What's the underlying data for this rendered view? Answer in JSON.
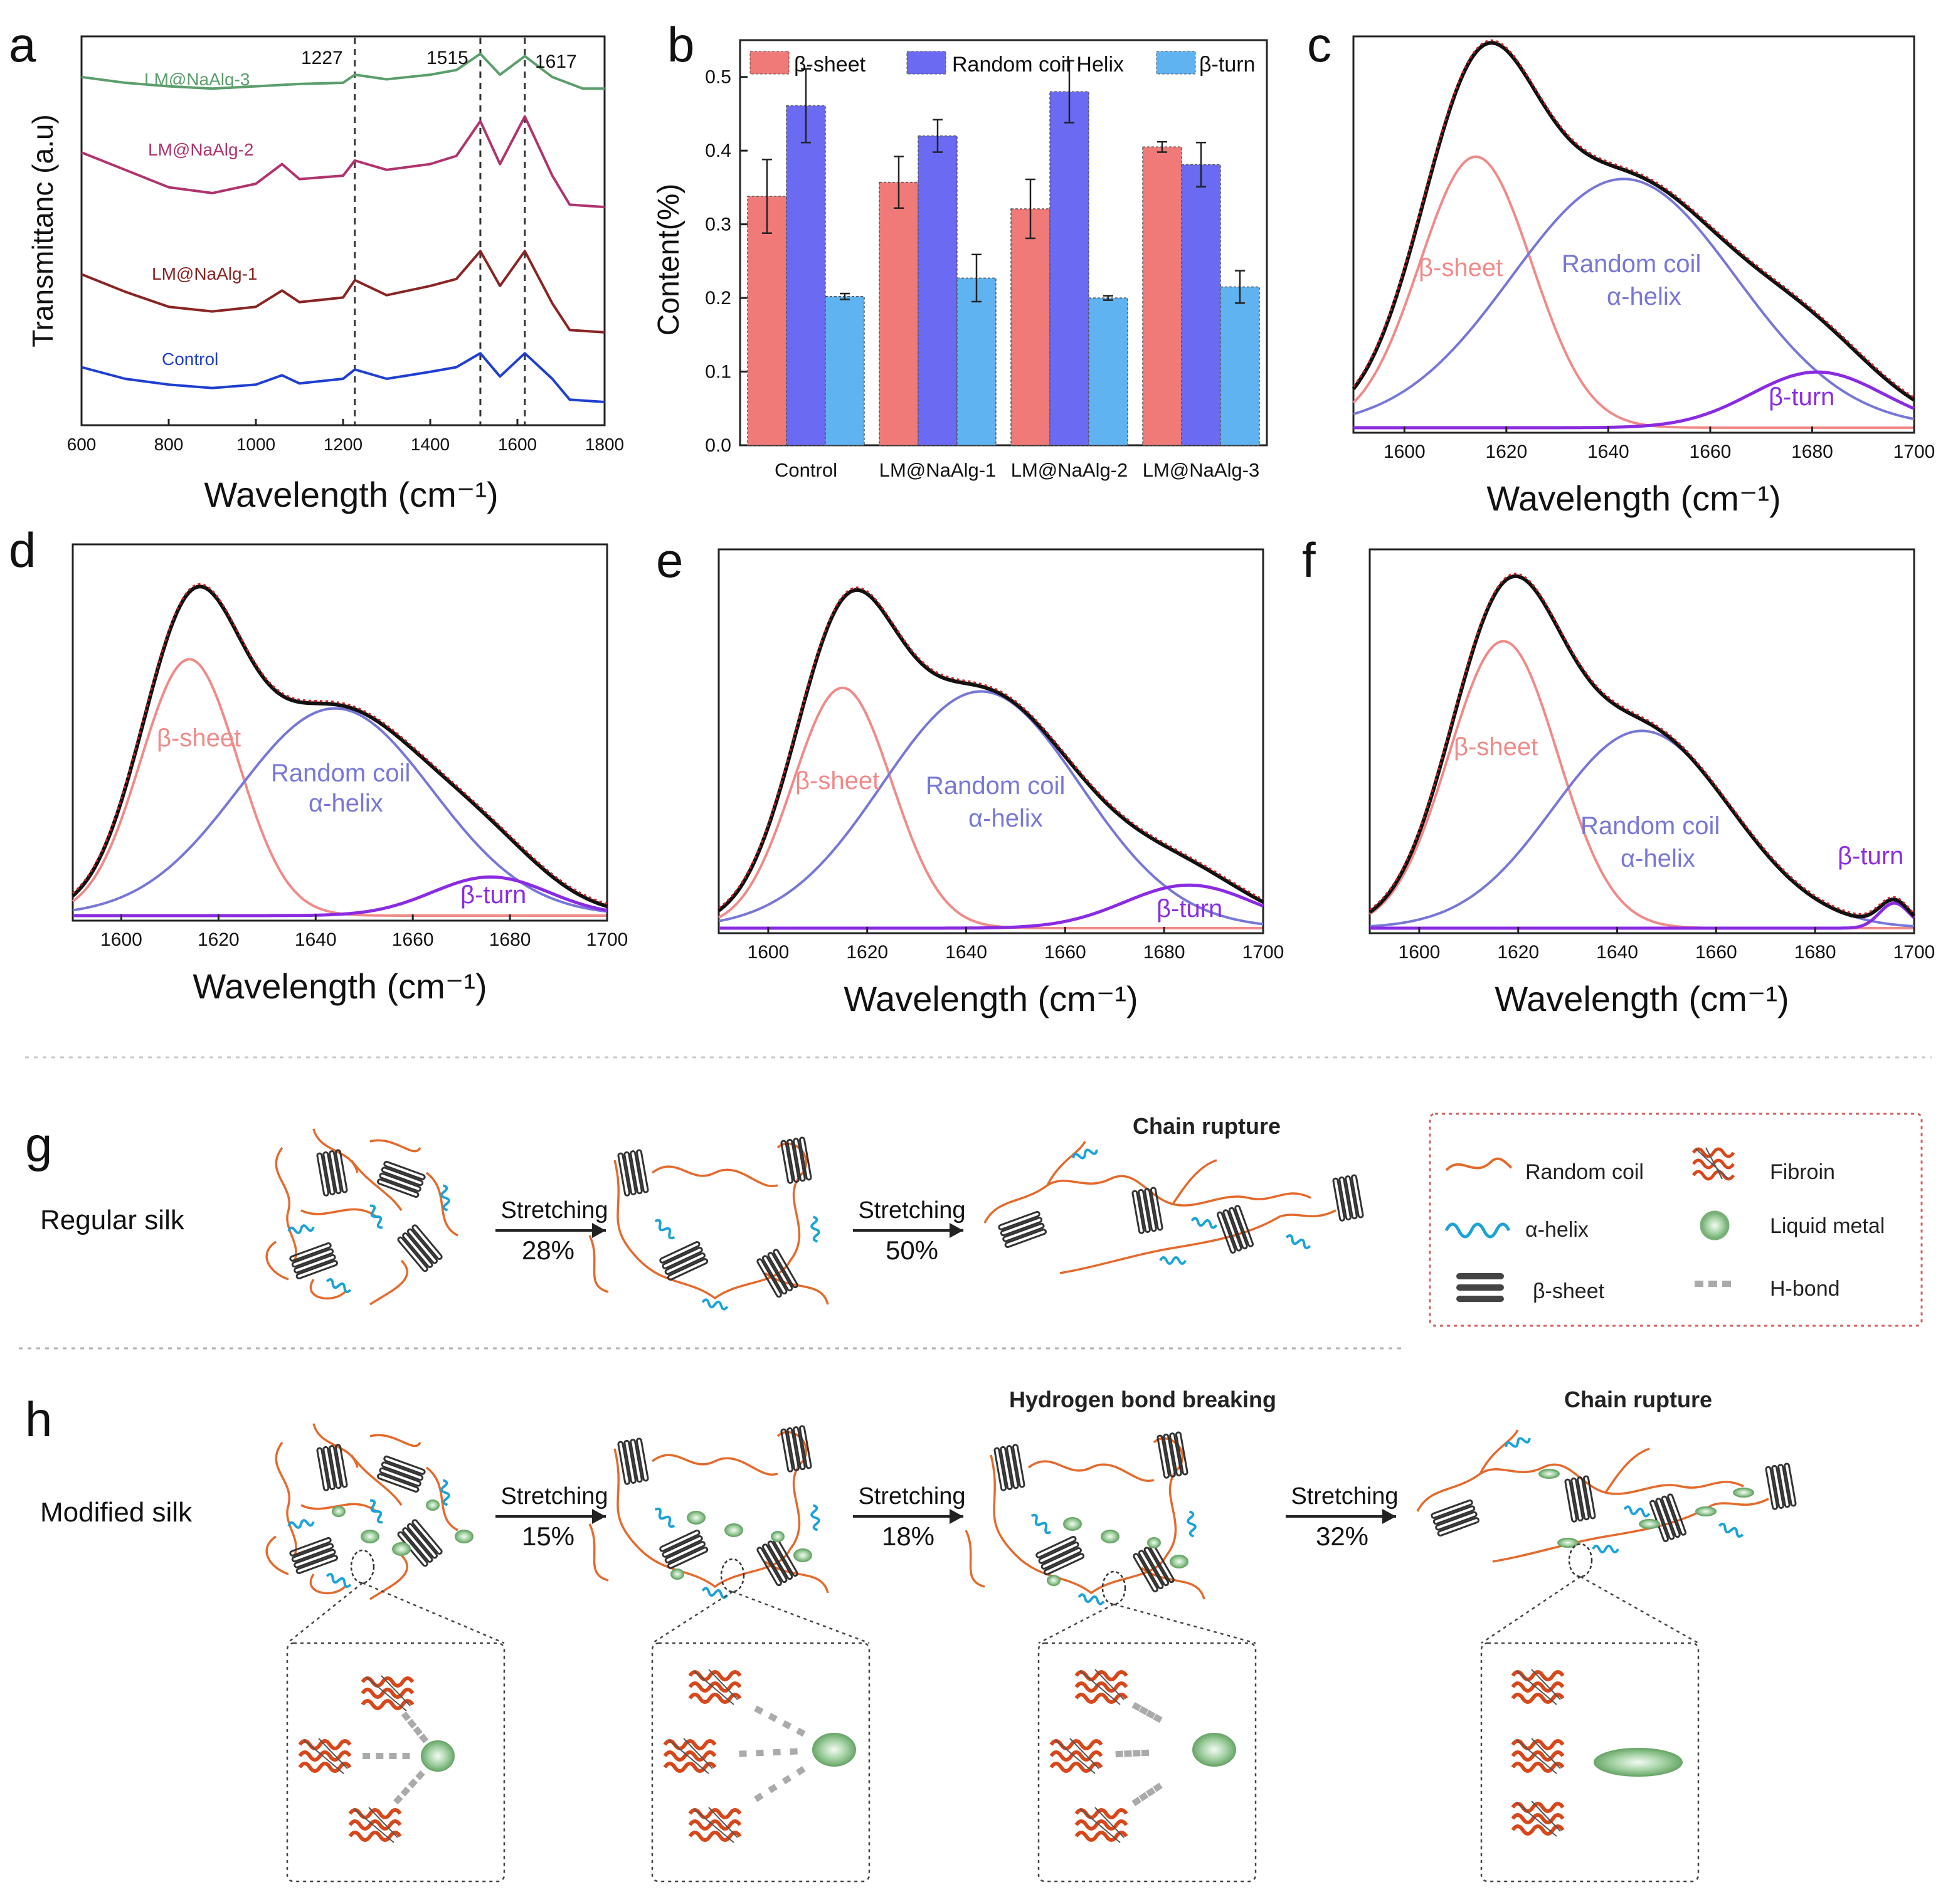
{
  "panels": {
    "a": {
      "letter": "a",
      "xlabel": "Wavelength (cm⁻¹)",
      "ylabel": "Transmittanc (a.u)",
      "xticks": [
        "600",
        "800",
        "1000",
        "1200",
        "1400",
        "1600",
        "1800"
      ],
      "peaks": [
        "1227",
        "1515",
        "1617"
      ],
      "series": [
        {
          "name": "LM@NaAlg-3",
          "color": "#5b9e6c"
        },
        {
          "name": "LM@NaAlg-2",
          "color": "#b0336e"
        },
        {
          "name": "LM@NaAlg-1",
          "color": "#8a2424"
        },
        {
          "name": "Control",
          "color": "#1f3fd1"
        }
      ]
    },
    "b": {
      "letter": "b",
      "ylabel": "Content(%)",
      "yticks": [
        "0.0",
        "0.1",
        "0.2",
        "0.3",
        "0.4",
        "0.5"
      ],
      "legend": [
        "β-sheet",
        "Random coil Helix",
        "β-turn"
      ],
      "colors": [
        "#f07a78",
        "#6a6af2",
        "#5fb3f0"
      ]
    },
    "c": {
      "letter": "c"
    },
    "d": {
      "letter": "d"
    },
    "e": {
      "letter": "e"
    },
    "f": {
      "letter": "f"
    },
    "deconv_common": {
      "xlabel": "Wavelength (cm⁻¹)",
      "xticks": [
        "1600",
        "1620",
        "1640",
        "1660",
        "1680",
        "1700"
      ],
      "labels": {
        "sheet": "β-sheet",
        "coil_1": "Random coil",
        "coil_2": "α-helix",
        "turn": "β-turn"
      },
      "colors": {
        "sheet": "#f08a88",
        "coil": "#7777d8",
        "turn": "#8a2be2",
        "fit": "#111111",
        "data": "#cc2222"
      }
    },
    "g": {
      "letter": "g",
      "row_label": "Regular silk",
      "title": "Chain rupture",
      "steps": [
        {
          "label": "Stretching",
          "pct": "28%"
        },
        {
          "label": "Stretching",
          "pct": "50%"
        }
      ]
    },
    "h": {
      "letter": "h",
      "row_label": "Modified silk",
      "titles": [
        "Hydrogen bond breaking",
        "Chain rupture"
      ],
      "steps": [
        {
          "label": "Stretching",
          "pct": "15%"
        },
        {
          "label": "Stretching",
          "pct": "18%"
        },
        {
          "label": "Stretching",
          "pct": "32%"
        }
      ]
    },
    "legend": {
      "items": [
        "Random coil",
        "α-helix",
        "β-sheet",
        "Fibroin",
        "Liquid metal",
        "H-bond"
      ]
    }
  },
  "chart_data": [
    {
      "panel": "a",
      "type": "line",
      "title": "",
      "xlabel": "Wavelength (cm⁻¹)",
      "ylabel": "Transmittanc (a.u)",
      "xlim": [
        600,
        1800
      ],
      "annotations": [
        1227,
        1515,
        1617
      ],
      "series": [
        {
          "name": "LM@NaAlg-3",
          "x": [
            600,
            700,
            800,
            900,
            1000,
            1100,
            1200,
            1227,
            1300,
            1400,
            1460,
            1515,
            1560,
            1617,
            1680,
            1750,
            1800
          ],
          "y": [
            4.6,
            4.55,
            4.52,
            4.5,
            4.52,
            4.54,
            4.55,
            4.62,
            4.58,
            4.62,
            4.66,
            4.8,
            4.62,
            4.78,
            4.6,
            4.5,
            4.5
          ]
        },
        {
          "name": "LM@NaAlg-2",
          "x": [
            600,
            700,
            800,
            900,
            1000,
            1060,
            1100,
            1200,
            1227,
            1300,
            1400,
            1460,
            1515,
            1560,
            1617,
            1680,
            1720,
            1800
          ],
          "y": [
            3.95,
            3.8,
            3.65,
            3.6,
            3.68,
            3.85,
            3.72,
            3.75,
            3.88,
            3.8,
            3.85,
            3.92,
            4.22,
            3.85,
            4.26,
            3.75,
            3.5,
            3.48
          ]
        },
        {
          "name": "LM@NaAlg-1",
          "x": [
            600,
            700,
            800,
            900,
            1000,
            1060,
            1100,
            1200,
            1227,
            1300,
            1400,
            1460,
            1515,
            1560,
            1617,
            1680,
            1720,
            1800
          ],
          "y": [
            2.9,
            2.75,
            2.62,
            2.58,
            2.62,
            2.76,
            2.66,
            2.7,
            2.85,
            2.72,
            2.8,
            2.86,
            3.1,
            2.8,
            3.1,
            2.65,
            2.42,
            2.4
          ]
        },
        {
          "name": "Control",
          "x": [
            600,
            700,
            800,
            900,
            1000,
            1060,
            1100,
            1200,
            1227,
            1300,
            1400,
            1460,
            1515,
            1560,
            1617,
            1680,
            1720,
            1800
          ],
          "y": [
            2.1,
            2.0,
            1.95,
            1.92,
            1.95,
            2.03,
            1.96,
            2.0,
            2.08,
            2.0,
            2.06,
            2.1,
            2.22,
            2.02,
            2.22,
            2.0,
            1.82,
            1.8
          ]
        }
      ]
    },
    {
      "panel": "b",
      "type": "bar",
      "title": "",
      "xlabel": "",
      "ylabel": "Content(%)",
      "ylim": [
        0,
        0.55
      ],
      "categories": [
        "Control",
        "LM@NaAlg-1",
        "LM@NaAlg-2",
        "LM@NaAlg-3"
      ],
      "series": [
        {
          "name": "β-sheet",
          "values": [
            0.338,
            0.357,
            0.321,
            0.405
          ],
          "errors": [
            0.05,
            0.035,
            0.04,
            0.007
          ]
        },
        {
          "name": "Random coil Helix",
          "values": [
            0.461,
            0.42,
            0.48,
            0.381
          ],
          "errors": [
            0.05,
            0.022,
            0.042,
            0.03
          ]
        },
        {
          "name": "β-turn",
          "values": [
            0.202,
            0.227,
            0.2,
            0.215
          ],
          "errors": [
            0.004,
            0.032,
            0.003,
            0.022
          ]
        }
      ]
    },
    {
      "panel": "c",
      "type": "area",
      "title": "",
      "xlabel": "Wavelength (cm⁻¹)",
      "ylabel": "",
      "xlim": [
        1590,
        1700
      ],
      "components": [
        {
          "name": "β-sheet",
          "center": 1614,
          "height": 0.73,
          "width": 11
        },
        {
          "name": "Random coil α-helix",
          "center": 1643,
          "height": 0.67,
          "width": 22
        },
        {
          "name": "β-turn",
          "center": 1681,
          "height": 0.15,
          "width": 13
        }
      ]
    },
    {
      "panel": "d",
      "type": "area",
      "title": "",
      "xlabel": "Wavelength (cm⁻¹)",
      "ylabel": "",
      "xlim": [
        1590,
        1700
      ],
      "components": [
        {
          "name": "β-sheet",
          "center": 1614,
          "height": 0.73,
          "width": 10
        },
        {
          "name": "Random coil α-helix",
          "center": 1644,
          "height": 0.59,
          "width": 20
        },
        {
          "name": "β-turn",
          "center": 1676,
          "height": 0.11,
          "width": 12
        }
      ]
    },
    {
      "panel": "e",
      "type": "area",
      "title": "",
      "xlabel": "Wavelength (cm⁻¹)",
      "ylabel": "",
      "xlim": [
        1590,
        1700
      ],
      "components": [
        {
          "name": "β-sheet",
          "center": 1615,
          "height": 0.67,
          "width": 10
        },
        {
          "name": "Random coil α-helix",
          "center": 1643,
          "height": 0.66,
          "width": 20
        },
        {
          "name": "β-turn",
          "center": 1685,
          "height": 0.12,
          "width": 13
        }
      ]
    },
    {
      "panel": "f",
      "type": "area",
      "title": "",
      "xlabel": "Wavelength (cm⁻¹)",
      "ylabel": "",
      "xlim": [
        1590,
        1700
      ],
      "components": [
        {
          "name": "β-sheet",
          "center": 1617,
          "height": 0.8,
          "width": 11
        },
        {
          "name": "Random coil α-helix",
          "center": 1645,
          "height": 0.55,
          "width": 18
        },
        {
          "name": "β-turn",
          "center": 1696,
          "height": 0.07,
          "width": 3
        }
      ]
    }
  ]
}
